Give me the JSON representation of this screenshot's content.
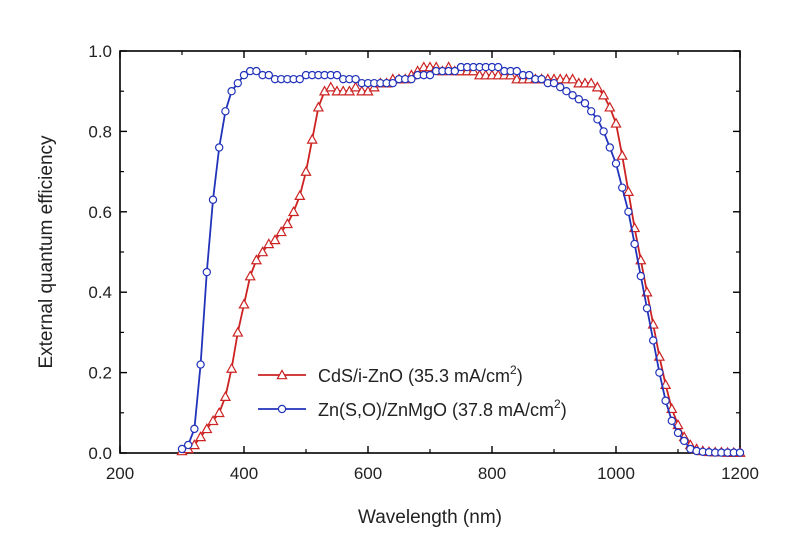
{
  "chart_data": {
    "type": "line",
    "xlabel": "Wavelength (nm)",
    "ylabel": "External quantum efficiency",
    "xlim": [
      200,
      1200
    ],
    "ylim": [
      0.0,
      1.0
    ],
    "xticks": [
      "200",
      "400",
      "600",
      "800",
      "1000",
      "1200"
    ],
    "yticks": [
      "0.0",
      "0.2",
      "0.4",
      "0.6",
      "0.8",
      "1.0"
    ],
    "grid": false,
    "legend_position": "bottom-center",
    "series": [
      {
        "name": "CdS/i-ZnO (35.3 mA/cm",
        "name_sup": "2",
        "name_end": ")",
        "color": "#cc2222",
        "marker": "triangle",
        "x": [
          300,
          310,
          320,
          330,
          340,
          350,
          360,
          370,
          380,
          390,
          400,
          410,
          420,
          430,
          440,
          450,
          460,
          470,
          480,
          490,
          500,
          510,
          520,
          530,
          540,
          550,
          560,
          570,
          580,
          590,
          600,
          610,
          620,
          630,
          640,
          650,
          660,
          670,
          680,
          690,
          700,
          710,
          720,
          730,
          740,
          750,
          760,
          770,
          780,
          790,
          800,
          810,
          820,
          830,
          840,
          850,
          860,
          870,
          880,
          890,
          900,
          910,
          920,
          930,
          940,
          950,
          960,
          970,
          980,
          990,
          1000,
          1010,
          1020,
          1030,
          1040,
          1050,
          1060,
          1070,
          1080,
          1090,
          1100,
          1110,
          1120,
          1130,
          1140,
          1150,
          1160,
          1170,
          1180,
          1190,
          1200
        ],
        "y": [
          0.005,
          0.01,
          0.02,
          0.04,
          0.06,
          0.08,
          0.1,
          0.14,
          0.21,
          0.3,
          0.37,
          0.44,
          0.48,
          0.5,
          0.52,
          0.53,
          0.55,
          0.57,
          0.6,
          0.64,
          0.7,
          0.78,
          0.86,
          0.9,
          0.91,
          0.9,
          0.9,
          0.9,
          0.91,
          0.9,
          0.9,
          0.91,
          0.92,
          0.92,
          0.93,
          0.93,
          0.93,
          0.94,
          0.95,
          0.96,
          0.96,
          0.96,
          0.95,
          0.96,
          0.95,
          0.95,
          0.95,
          0.95,
          0.94,
          0.94,
          0.94,
          0.94,
          0.94,
          0.94,
          0.93,
          0.93,
          0.93,
          0.93,
          0.93,
          0.93,
          0.93,
          0.93,
          0.93,
          0.93,
          0.92,
          0.92,
          0.92,
          0.91,
          0.89,
          0.86,
          0.82,
          0.74,
          0.65,
          0.56,
          0.48,
          0.4,
          0.32,
          0.24,
          0.17,
          0.11,
          0.07,
          0.04,
          0.02,
          0.01,
          0.005,
          0.003,
          0.002,
          0.002,
          0.001,
          0.001,
          0.001
        ]
      },
      {
        "name": "Zn(S,O)/ZnMgO (37.8 mA/cm",
        "name_sup": "2",
        "name_end": ")",
        "color": "#2233bb",
        "marker": "circle",
        "x": [
          300,
          310,
          320,
          330,
          340,
          350,
          360,
          370,
          380,
          390,
          400,
          410,
          420,
          430,
          440,
          450,
          460,
          470,
          480,
          490,
          500,
          510,
          520,
          530,
          540,
          550,
          560,
          570,
          580,
          590,
          600,
          610,
          620,
          630,
          640,
          650,
          660,
          670,
          680,
          690,
          700,
          710,
          720,
          730,
          740,
          750,
          760,
          770,
          780,
          790,
          800,
          810,
          820,
          830,
          840,
          850,
          860,
          870,
          880,
          890,
          900,
          910,
          920,
          930,
          940,
          950,
          960,
          970,
          980,
          990,
          1000,
          1010,
          1020,
          1030,
          1040,
          1050,
          1060,
          1070,
          1080,
          1090,
          1100,
          1110,
          1120,
          1130,
          1140,
          1150,
          1160,
          1170,
          1180,
          1190,
          1200
        ],
        "y": [
          0.01,
          0.02,
          0.06,
          0.22,
          0.45,
          0.63,
          0.76,
          0.85,
          0.9,
          0.92,
          0.94,
          0.95,
          0.95,
          0.94,
          0.94,
          0.93,
          0.93,
          0.93,
          0.93,
          0.93,
          0.94,
          0.94,
          0.94,
          0.94,
          0.94,
          0.94,
          0.93,
          0.93,
          0.93,
          0.92,
          0.92,
          0.92,
          0.92,
          0.92,
          0.92,
          0.93,
          0.93,
          0.93,
          0.94,
          0.94,
          0.94,
          0.95,
          0.95,
          0.95,
          0.95,
          0.96,
          0.96,
          0.96,
          0.96,
          0.96,
          0.96,
          0.96,
          0.95,
          0.95,
          0.95,
          0.94,
          0.94,
          0.93,
          0.93,
          0.92,
          0.92,
          0.91,
          0.9,
          0.89,
          0.88,
          0.87,
          0.85,
          0.83,
          0.8,
          0.76,
          0.72,
          0.66,
          0.6,
          0.52,
          0.44,
          0.36,
          0.28,
          0.2,
          0.13,
          0.08,
          0.05,
          0.03,
          0.01,
          0.005,
          0.003,
          0.002,
          0.001,
          0.001,
          0.001,
          0.001,
          0.001
        ]
      }
    ]
  }
}
